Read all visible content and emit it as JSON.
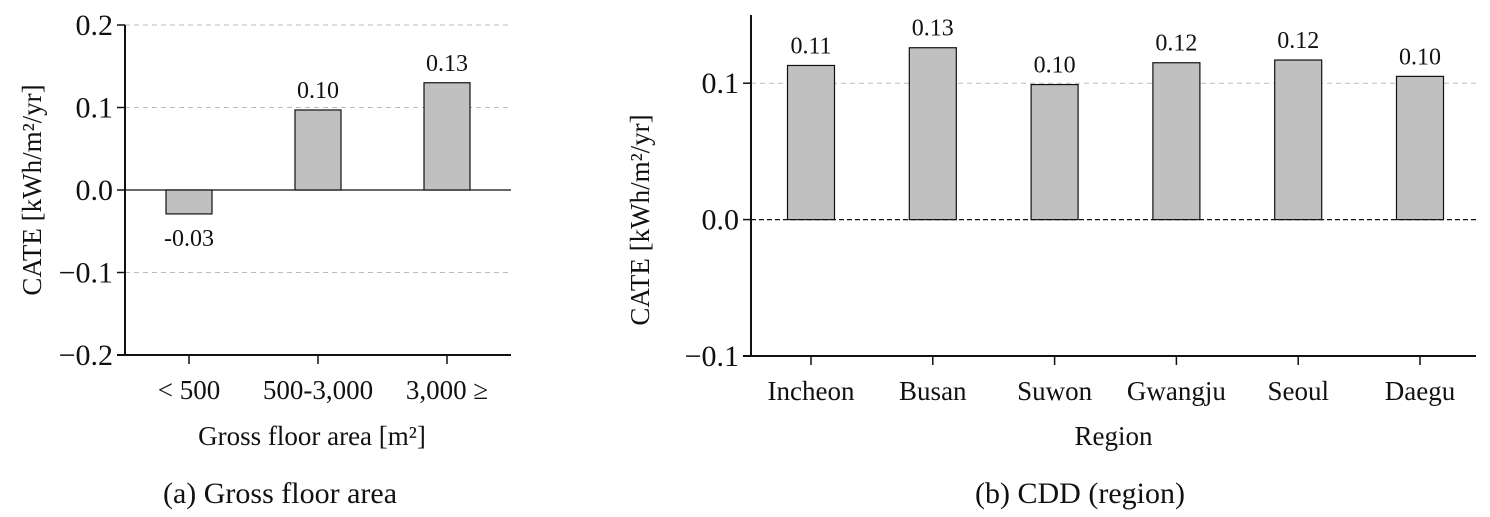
{
  "chart_data": [
    {
      "type": "bar",
      "title": "(a) Gross floor area",
      "xlabel": "Gross floor area [m²]",
      "ylabel": "CATE [kWh/m²/yr]",
      "categories": [
        "< 500",
        "500-3,000",
        "3,000 ≥"
      ],
      "values": [
        -0.029,
        0.097,
        0.13
      ],
      "data_labels": [
        "-0.03",
        "0.10",
        "0.13"
      ],
      "ylim": [
        -0.2,
        0.2
      ],
      "yticks": [
        -0.2,
        -0.1,
        0.0,
        0.1,
        0.2
      ],
      "ytick_labels": [
        "−0.2",
        "−0.1",
        "0.0",
        "0.1",
        "0.2"
      ],
      "grid": "dashed horizontal at 0.1, 0.2, -0.1",
      "bar_color": "#c0c0c0"
    },
    {
      "type": "bar",
      "title": "(b) CDD (region)",
      "xlabel": "Region",
      "ylabel": "CATE [kWh/m²/yr]",
      "categories": [
        "Incheon",
        "Busan",
        "Suwon",
        "Gwangju",
        "Seoul",
        "Daegu"
      ],
      "values": [
        0.113,
        0.126,
        0.099,
        0.115,
        0.117,
        0.105
      ],
      "data_labels": [
        "0.11",
        "0.13",
        "0.10",
        "0.12",
        "0.12",
        "0.10"
      ],
      "ylim": [
        -0.1,
        0.15
      ],
      "yticks": [
        -0.1,
        0.0,
        0.1
      ],
      "ytick_labels": [
        "−0.1",
        "0.0",
        "0.1"
      ],
      "grid": "dashed horizontal at 0.1",
      "bar_color": "#c0c0c0"
    }
  ]
}
